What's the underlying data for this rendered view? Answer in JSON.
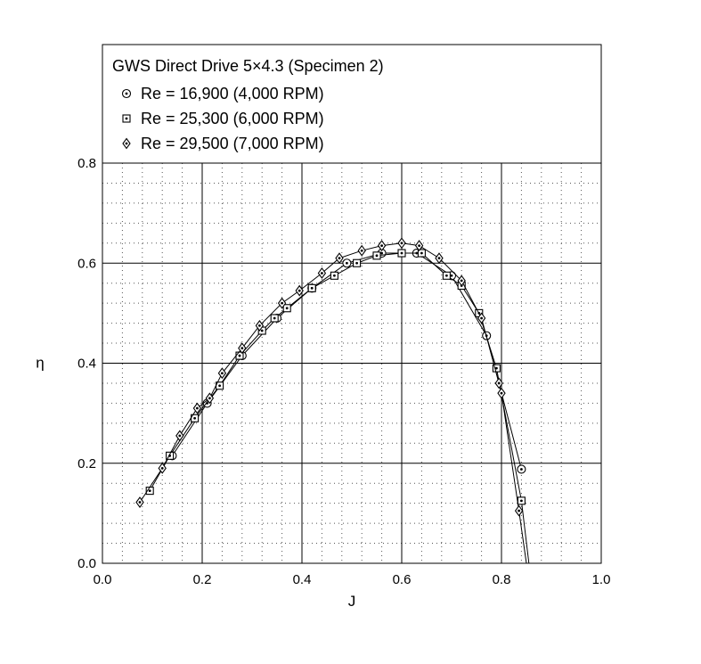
{
  "chart_data": {
    "type": "line",
    "title": "GWS Direct Drive 5×4.3 (Specimen 2)",
    "xlabel": "J",
    "ylabel": "η",
    "xlim": [
      0.0,
      1.0
    ],
    "ylim": [
      0.0,
      0.8
    ],
    "x_ticks": [
      "0.0",
      "0.2",
      "0.4",
      "0.6",
      "0.8",
      "1.0"
    ],
    "y_ticks": [
      "0.0",
      "0.2",
      "0.4",
      "0.6",
      "0.8"
    ],
    "grid": true,
    "legend_position": "top-left",
    "series": [
      {
        "name": "Re = 16,900 (4,000 RPM)",
        "marker": "circle-dot",
        "x": [
          0.14,
          0.21,
          0.28,
          0.35,
          0.42,
          0.49,
          0.56,
          0.63,
          0.7,
          0.77,
          0.84
        ],
        "y": [
          0.215,
          0.32,
          0.415,
          0.49,
          0.55,
          0.6,
          0.62,
          0.62,
          0.575,
          0.455,
          0.188
        ]
      },
      {
        "name": "Re = 25,300 (6,000 RPM)",
        "marker": "square-dot",
        "x": [
          0.095,
          0.135,
          0.185,
          0.235,
          0.275,
          0.32,
          0.345,
          0.37,
          0.42,
          0.465,
          0.51,
          0.55,
          0.6,
          0.64,
          0.69,
          0.72,
          0.755,
          0.79,
          0.84,
          0.855
        ],
        "y": [
          0.145,
          0.215,
          0.29,
          0.355,
          0.415,
          0.465,
          0.49,
          0.51,
          0.55,
          0.575,
          0.6,
          0.615,
          0.62,
          0.62,
          0.575,
          0.555,
          0.5,
          0.39,
          0.125,
          0.0
        ]
      },
      {
        "name": "Re = 29,500 (7,000 RPM)",
        "marker": "diamond-dot",
        "x": [
          0.075,
          0.12,
          0.155,
          0.19,
          0.215,
          0.24,
          0.28,
          0.315,
          0.36,
          0.395,
          0.44,
          0.475,
          0.52,
          0.56,
          0.6,
          0.635,
          0.675,
          0.72,
          0.76,
          0.795,
          0.8,
          0.835,
          0.85
        ],
        "y": [
          0.122,
          0.19,
          0.255,
          0.31,
          0.33,
          0.38,
          0.43,
          0.475,
          0.52,
          0.545,
          0.58,
          0.61,
          0.625,
          0.635,
          0.64,
          0.635,
          0.61,
          0.565,
          0.49,
          0.36,
          0.34,
          0.105,
          0.0
        ]
      }
    ]
  }
}
